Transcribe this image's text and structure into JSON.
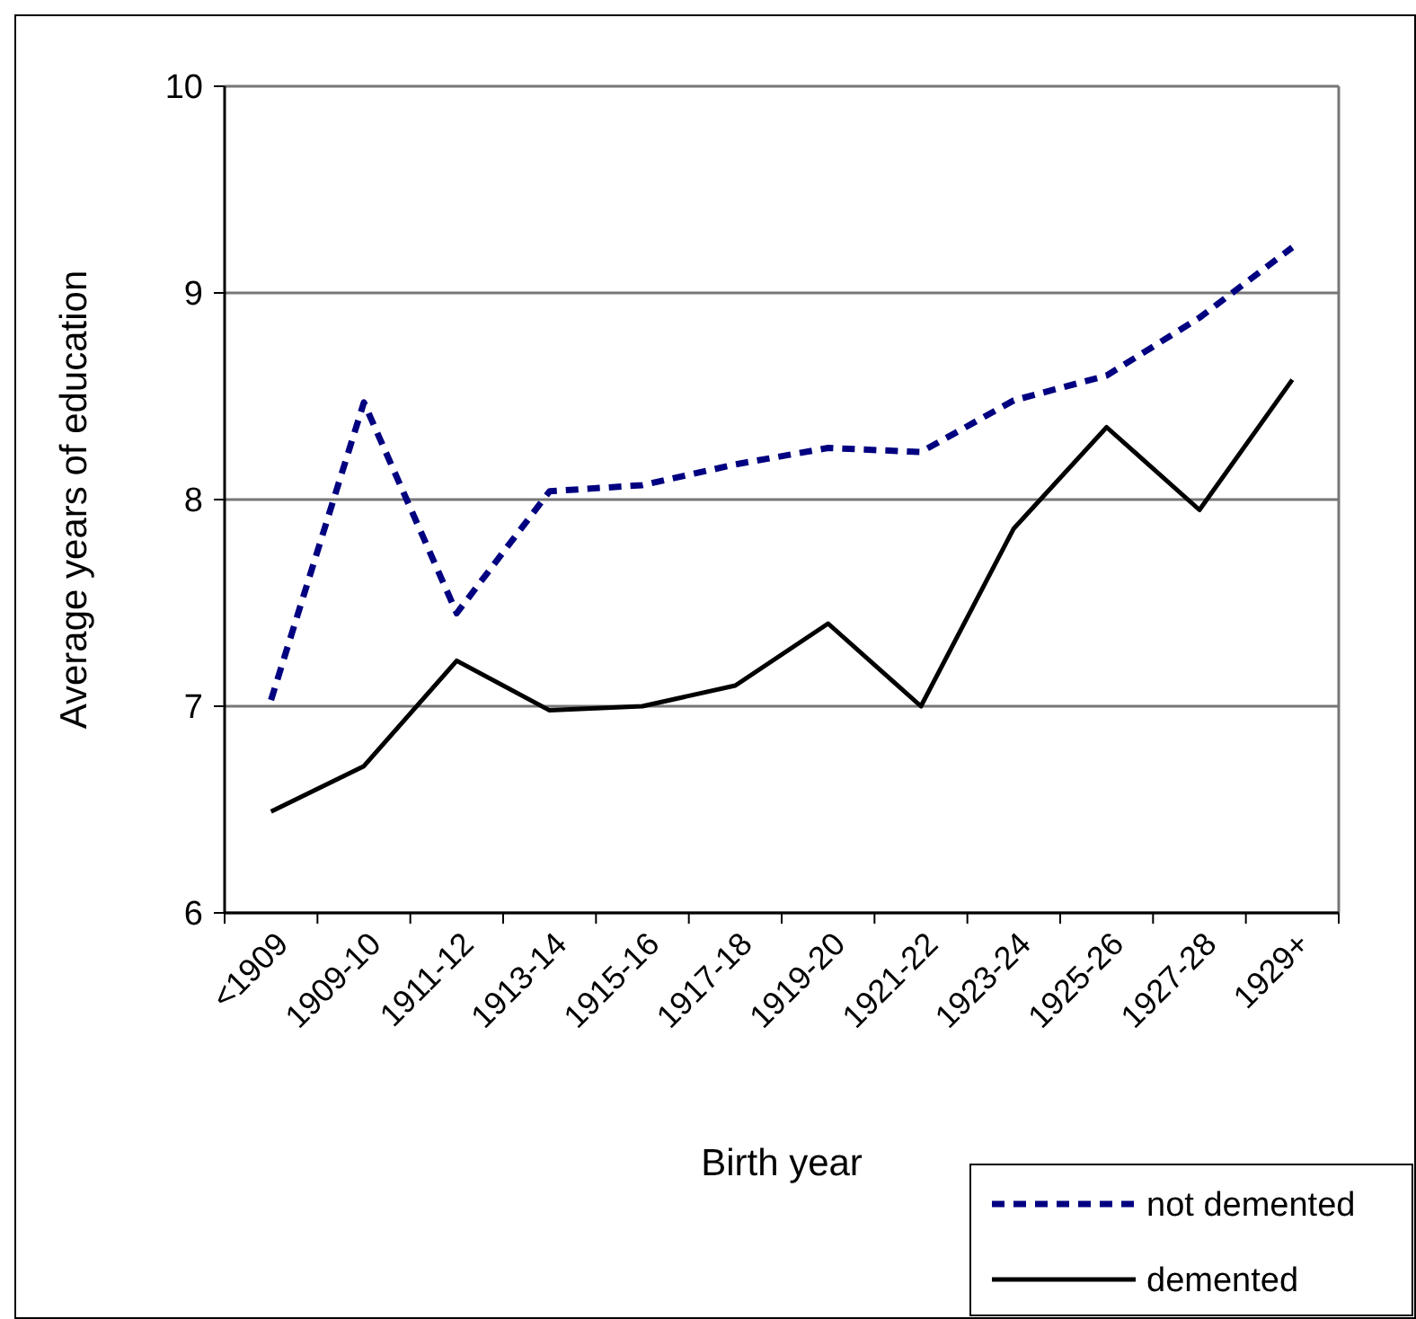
{
  "chart_data": {
    "type": "line",
    "xlabel": "Birth year",
    "ylabel": "Average years of education",
    "categories": [
      "<1909",
      "1909-10",
      "1911-12",
      "1913-14",
      "1915-16",
      "1917-18",
      "1919-20",
      "1921-22",
      "1923-24",
      "1925-26",
      "1927-28",
      "1929+"
    ],
    "ylim": [
      6,
      10
    ],
    "yticks": [
      6,
      7,
      8,
      9,
      10
    ],
    "grid": "y",
    "legend": "bottom right",
    "marker": "none",
    "series": [
      {
        "name": "not demented",
        "color": "#000080",
        "line_style": "dashed",
        "values": [
          7.03,
          8.47,
          7.45,
          8.04,
          8.07,
          8.17,
          8.25,
          8.23,
          8.48,
          8.6,
          8.88,
          9.22
        ]
      },
      {
        "name": "demented",
        "color": "#000000",
        "line_style": "solid",
        "values": [
          6.49,
          6.71,
          7.22,
          6.98,
          7.0,
          7.1,
          7.4,
          7.0,
          7.86,
          8.35,
          7.95,
          8.58
        ]
      }
    ]
  }
}
